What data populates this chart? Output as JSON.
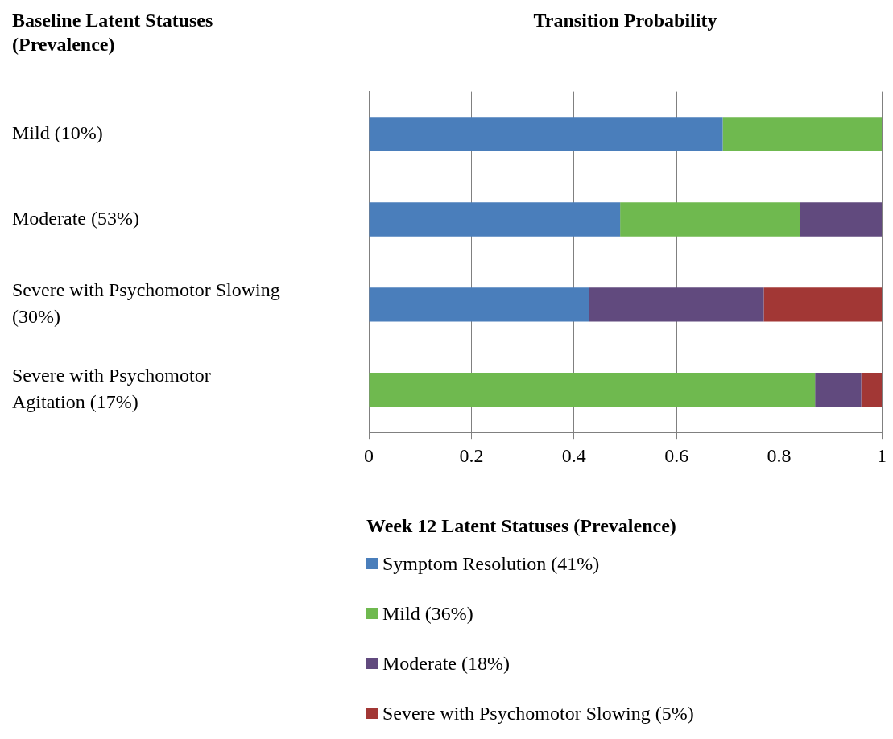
{
  "chart_data": {
    "type": "bar",
    "orientation": "horizontal",
    "stacked": true,
    "title": "Transition Probability",
    "ylabel": "Baseline Latent Statuses (Prevalence)",
    "legend_title": "Week 12 Latent Statuses (Prevalence)",
    "categories": [
      "Mild (10%)",
      "Moderate (53%)",
      "Severe with Psychomotor Slowing (30%)",
      "Severe with Psychomotor Agitation (17%)"
    ],
    "series": [
      {
        "name": "Symptom Resolution (41%)",
        "color": "#4a7ebb",
        "values": [
          0.69,
          0.49,
          0.43,
          null
        ]
      },
      {
        "name": "Mild (36%)",
        "color": "#6fb94f",
        "values": [
          0.31,
          0.35,
          null,
          0.87
        ]
      },
      {
        "name": "Moderate (18%)",
        "color": "#614a7e",
        "values": [
          null,
          0.16,
          0.34,
          0.09
        ]
      },
      {
        "name": "Severe with Psychomotor Slowing (5%)",
        "color": "#a23735",
        "values": [
          null,
          null,
          0.23,
          0.04
        ]
      }
    ],
    "xlim": [
      0,
      1
    ],
    "xticks": [
      0,
      0.2,
      0.4,
      0.6,
      0.8,
      1
    ],
    "grid": "x",
    "legend": "bottom"
  }
}
